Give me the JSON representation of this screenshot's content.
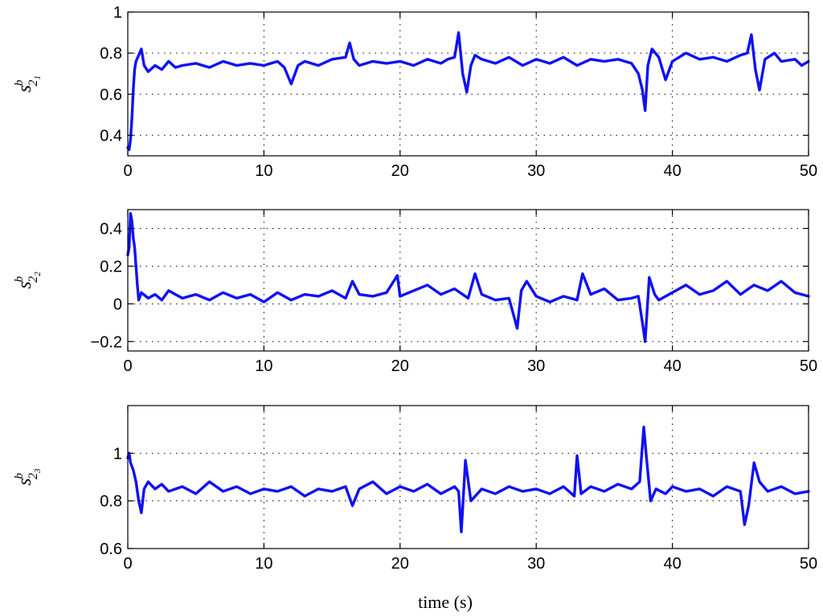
{
  "chart_data": [
    {
      "type": "line",
      "xlim": [
        0,
        50
      ],
      "ylim": [
        0.3,
        1.0
      ],
      "xticks": [
        0,
        10,
        20,
        30,
        40,
        50
      ],
      "yticks": [
        0.4,
        0.6,
        0.8,
        1.0
      ],
      "ytick_labels": [
        "0.4",
        "0.6",
        "0.8",
        "1"
      ],
      "grid": true,
      "ylabel": {
        "base": "s",
        "sup": "b",
        "sub": "2",
        "subsub": "1"
      },
      "color": "#1010f5",
      "series": [
        {
          "x": [
            0,
            0.1,
            0.2,
            0.3,
            0.4,
            0.5,
            0.6,
            0.8,
            1.0,
            1.2,
            1.5,
            2,
            2.5,
            3,
            3.5,
            4,
            5,
            6,
            7,
            8,
            9,
            10,
            11,
            11.5,
            12,
            12.5,
            13,
            14,
            15,
            16,
            16.3,
            16.6,
            17,
            18,
            19,
            20,
            21,
            22,
            23,
            23.5,
            24,
            24.3,
            24.6,
            24.9,
            25.2,
            25.5,
            26,
            27,
            28,
            29,
            30,
            31,
            32,
            33,
            34,
            35,
            36,
            37,
            37.5,
            37.8,
            38.0,
            38.2,
            38.5,
            39,
            39.5,
            40,
            41,
            42,
            43,
            44,
            45,
            45.5,
            45.8,
            46.1,
            46.4,
            46.8,
            47.5,
            48,
            49,
            49.5,
            50
          ],
          "y": [
            0.34,
            0.33,
            0.38,
            0.48,
            0.62,
            0.72,
            0.76,
            0.79,
            0.82,
            0.74,
            0.71,
            0.74,
            0.72,
            0.76,
            0.73,
            0.74,
            0.75,
            0.73,
            0.76,
            0.74,
            0.75,
            0.74,
            0.76,
            0.73,
            0.65,
            0.74,
            0.76,
            0.74,
            0.77,
            0.78,
            0.85,
            0.77,
            0.74,
            0.76,
            0.75,
            0.76,
            0.74,
            0.77,
            0.75,
            0.77,
            0.78,
            0.9,
            0.7,
            0.61,
            0.74,
            0.79,
            0.77,
            0.75,
            0.78,
            0.74,
            0.77,
            0.75,
            0.78,
            0.74,
            0.77,
            0.76,
            0.77,
            0.75,
            0.7,
            0.62,
            0.52,
            0.74,
            0.82,
            0.78,
            0.67,
            0.76,
            0.8,
            0.77,
            0.78,
            0.76,
            0.79,
            0.8,
            0.89,
            0.72,
            0.62,
            0.77,
            0.8,
            0.76,
            0.77,
            0.74,
            0.76
          ]
        }
      ]
    },
    {
      "type": "line",
      "xlim": [
        0,
        50
      ],
      "ylim": [
        -0.25,
        0.5
      ],
      "xticks": [
        0,
        10,
        20,
        30,
        40,
        50
      ],
      "yticks": [
        -0.2,
        0,
        0.2,
        0.4
      ],
      "ytick_labels": [
        "−0.2",
        "0",
        "0.2",
        "0.4"
      ],
      "grid": true,
      "ylabel": {
        "base": "s",
        "sup": "b",
        "sub": "2",
        "subsub": "2"
      },
      "color": "#1010f5",
      "series": [
        {
          "x": [
            0,
            0.1,
            0.2,
            0.3,
            0.4,
            0.5,
            0.6,
            0.7,
            0.8,
            1.0,
            1.5,
            2,
            2.5,
            3,
            4,
            5,
            6,
            7,
            8,
            9,
            10,
            11,
            12,
            13,
            14,
            15,
            16,
            16.5,
            17,
            18,
            19,
            19.8,
            20,
            21,
            22,
            23,
            24,
            25,
            25.5,
            26,
            27,
            28,
            28.3,
            28.6,
            28.9,
            29.3,
            30,
            31,
            32,
            33,
            33.4,
            34,
            35,
            36,
            37,
            37.5,
            37.8,
            38.0,
            38.3,
            38.7,
            39,
            40,
            41,
            42,
            43,
            44,
            45,
            46,
            47,
            48,
            49,
            50
          ],
          "y": [
            0.26,
            0.3,
            0.48,
            0.44,
            0.35,
            0.3,
            0.2,
            0.1,
            0.02,
            0.06,
            0.03,
            0.05,
            0.02,
            0.07,
            0.03,
            0.05,
            0.02,
            0.06,
            0.03,
            0.05,
            0.01,
            0.06,
            0.02,
            0.05,
            0.04,
            0.07,
            0.03,
            0.12,
            0.05,
            0.04,
            0.06,
            0.15,
            0.04,
            0.07,
            0.1,
            0.05,
            0.08,
            0.03,
            0.16,
            0.05,
            0.02,
            0.03,
            -0.05,
            -0.13,
            0.07,
            0.12,
            0.04,
            0.01,
            0.04,
            0.02,
            0.16,
            0.05,
            0.08,
            0.02,
            0.03,
            0.04,
            -0.1,
            -0.2,
            0.14,
            0.05,
            0.02,
            0.06,
            0.1,
            0.05,
            0.07,
            0.12,
            0.05,
            0.1,
            0.07,
            0.12,
            0.06,
            0.04
          ]
        }
      ]
    },
    {
      "type": "line",
      "xlim": [
        0,
        50
      ],
      "ylim": [
        0.6,
        1.2
      ],
      "xticks": [
        0,
        10,
        20,
        30,
        40,
        50
      ],
      "yticks": [
        0.6,
        0.8,
        1.0
      ],
      "ytick_labels": [
        "0.6",
        "0.8",
        "1"
      ],
      "xlabel": "time (s)",
      "grid": true,
      "ylabel": {
        "base": "s",
        "sup": "b",
        "sub": "2",
        "subsub": "3"
      },
      "color": "#1010f5",
      "series": [
        {
          "x": [
            0,
            0.1,
            0.2,
            0.4,
            0.6,
            0.8,
            1.0,
            1.2,
            1.5,
            2,
            2.5,
            3,
            4,
            5,
            6,
            7,
            8,
            9,
            10,
            11,
            12,
            13,
            14,
            15,
            16,
            16.5,
            17,
            18,
            19,
            20,
            21,
            22,
            23,
            24,
            24.3,
            24.5,
            24.8,
            25.2,
            26,
            27,
            28,
            29,
            30,
            31,
            32,
            32.8,
            33.0,
            33.3,
            34,
            35,
            36,
            37,
            37.6,
            37.9,
            38.1,
            38.4,
            38.8,
            39.5,
            40,
            41,
            42,
            43,
            44,
            45,
            45.3,
            45.6,
            46.0,
            46.4,
            47,
            48,
            49,
            50
          ],
          "y": [
            0.98,
            1.0,
            0.96,
            0.93,
            0.88,
            0.8,
            0.75,
            0.85,
            0.88,
            0.85,
            0.87,
            0.84,
            0.86,
            0.83,
            0.88,
            0.84,
            0.86,
            0.83,
            0.85,
            0.84,
            0.86,
            0.82,
            0.85,
            0.84,
            0.86,
            0.78,
            0.85,
            0.88,
            0.83,
            0.86,
            0.84,
            0.87,
            0.83,
            0.86,
            0.84,
            0.67,
            0.97,
            0.8,
            0.85,
            0.83,
            0.86,
            0.84,
            0.85,
            0.83,
            0.86,
            0.82,
            0.99,
            0.83,
            0.86,
            0.84,
            0.87,
            0.85,
            0.88,
            1.11,
            0.98,
            0.8,
            0.85,
            0.83,
            0.86,
            0.84,
            0.85,
            0.82,
            0.86,
            0.84,
            0.7,
            0.78,
            0.96,
            0.88,
            0.84,
            0.86,
            0.83,
            0.84
          ]
        }
      ]
    }
  ]
}
